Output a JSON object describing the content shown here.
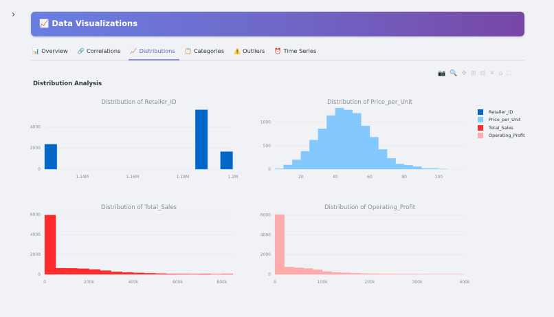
{
  "header": {
    "title": "Data Visualizations",
    "icon": "chart-increasing-icon"
  },
  "tabs": [
    {
      "label": "Overview",
      "icon": "📊",
      "active": false
    },
    {
      "label": "Correlations",
      "icon": "🔗",
      "active": false
    },
    {
      "label": "Distributions",
      "icon": "📈",
      "active": true
    },
    {
      "label": "Categories",
      "icon": "📋",
      "active": false
    },
    {
      "label": "Outliers",
      "icon": "⚠️",
      "active": false
    },
    {
      "label": "Time Series",
      "icon": "⏰",
      "active": false
    }
  ],
  "section_title": "Distribution Analysis",
  "toolbar": [
    "camera-icon",
    "zoom-icon",
    "pan-icon",
    "zoom-in-icon",
    "zoom-out-icon",
    "autoscale-icon",
    "home-icon",
    "fullscreen-icon"
  ],
  "legend": [
    {
      "name": "Retailer_ID",
      "color": "#0066c8"
    },
    {
      "name": "Price_per_Unit",
      "color": "#83c9ff"
    },
    {
      "name": "Total_Sales",
      "color": "#ff2b2b"
    },
    {
      "name": "Operating_Profit",
      "color": "#ffabab"
    }
  ],
  "chart_data": [
    {
      "type": "bar",
      "title": "Distribution of Retailer_ID",
      "color": "#0066c8",
      "bin_width": 5000,
      "bin_starts": [
        1125000,
        1185000,
        1195000
      ],
      "values": [
        2350,
        5600,
        1650
      ],
      "xlim": [
        1125000,
        1200000
      ],
      "ylim": [
        0,
        5900
      ],
      "xticks": [
        {
          "v": 1140000,
          "label": "1.14M"
        },
        {
          "v": 1160000,
          "label": "1.16M"
        },
        {
          "v": 1180000,
          "label": "1.18M"
        },
        {
          "v": 1200000,
          "label": "1.2M"
        }
      ],
      "yticks": [
        {
          "v": 0,
          "label": "0"
        },
        {
          "v": 2000,
          "label": "2000"
        },
        {
          "v": 4000,
          "label": "4000"
        }
      ]
    },
    {
      "type": "bar",
      "title": "Distribution of Price_per_Unit",
      "color": "#83c9ff",
      "bin_width": 5,
      "bin_starts": [
        5,
        10,
        15,
        20,
        25,
        30,
        35,
        40,
        45,
        50,
        55,
        60,
        65,
        70,
        75,
        80,
        85,
        90,
        95,
        100
      ],
      "values": [
        10,
        90,
        200,
        380,
        620,
        860,
        1140,
        1300,
        1260,
        1190,
        920,
        680,
        420,
        230,
        110,
        85,
        55,
        15,
        15,
        5
      ],
      "xlim": [
        5,
        115
      ],
      "ylim": [
        0,
        1330
      ],
      "xticks": [
        {
          "v": 20,
          "label": "20"
        },
        {
          "v": 40,
          "label": "40"
        },
        {
          "v": 60,
          "label": "60"
        },
        {
          "v": 80,
          "label": "80"
        },
        {
          "v": 100,
          "label": "100"
        }
      ],
      "yticks": [
        {
          "v": 0,
          "label": "0"
        },
        {
          "v": 500,
          "label": "500"
        },
        {
          "v": 1000,
          "label": "1000"
        }
      ]
    },
    {
      "type": "bar",
      "title": "Distribution of Total_Sales",
      "color": "#ff2b2b",
      "bin_width": 50000,
      "bin_starts": [
        0,
        50000,
        100000,
        150000,
        200000,
        250000,
        300000,
        350000,
        400000,
        450000,
        500000,
        550000,
        600000,
        650000,
        700000,
        750000,
        800000
      ],
      "values": [
        5950,
        620,
        610,
        580,
        500,
        380,
        260,
        200,
        160,
        120,
        90,
        60,
        50,
        40,
        60,
        30,
        40
      ],
      "xlim": [
        0,
        850000
      ],
      "ylim": [
        0,
        6000
      ],
      "xticks": [
        {
          "v": 0,
          "label": "0"
        },
        {
          "v": 200000,
          "label": "200k"
        },
        {
          "v": 400000,
          "label": "400k"
        },
        {
          "v": 600000,
          "label": "600k"
        },
        {
          "v": 800000,
          "label": "800k"
        }
      ],
      "yticks": [
        {
          "v": 0,
          "label": "0"
        },
        {
          "v": 2000,
          "label": "2000"
        },
        {
          "v": 4000,
          "label": "4000"
        },
        {
          "v": 6000,
          "label": "6000"
        }
      ]
    },
    {
      "type": "bar",
      "title": "Distribution of Operating_Profit",
      "color": "#ffabab",
      "bin_width": 20000,
      "bin_starts": [
        0,
        20000,
        40000,
        60000,
        80000,
        100000,
        120000,
        140000,
        160000,
        180000,
        200000,
        220000,
        240000,
        260000,
        280000,
        300000,
        320000,
        340000,
        360000,
        380000
      ],
      "values": [
        6050,
        750,
        680,
        600,
        480,
        290,
        210,
        170,
        130,
        90,
        70,
        60,
        50,
        40,
        40,
        30,
        25,
        20,
        20,
        15
      ],
      "xlim": [
        0,
        400000
      ],
      "ylim": [
        0,
        6050
      ],
      "xticks": [
        {
          "v": 0,
          "label": "0"
        },
        {
          "v": 100000,
          "label": "100k"
        },
        {
          "v": 200000,
          "label": "200k"
        },
        {
          "v": 300000,
          "label": "300k"
        },
        {
          "v": 400000,
          "label": "400k"
        }
      ],
      "yticks": [
        {
          "v": 0,
          "label": "0"
        },
        {
          "v": 2000,
          "label": "2000"
        },
        {
          "v": 4000,
          "label": "4000"
        },
        {
          "v": 6000,
          "label": "6000"
        }
      ]
    }
  ]
}
